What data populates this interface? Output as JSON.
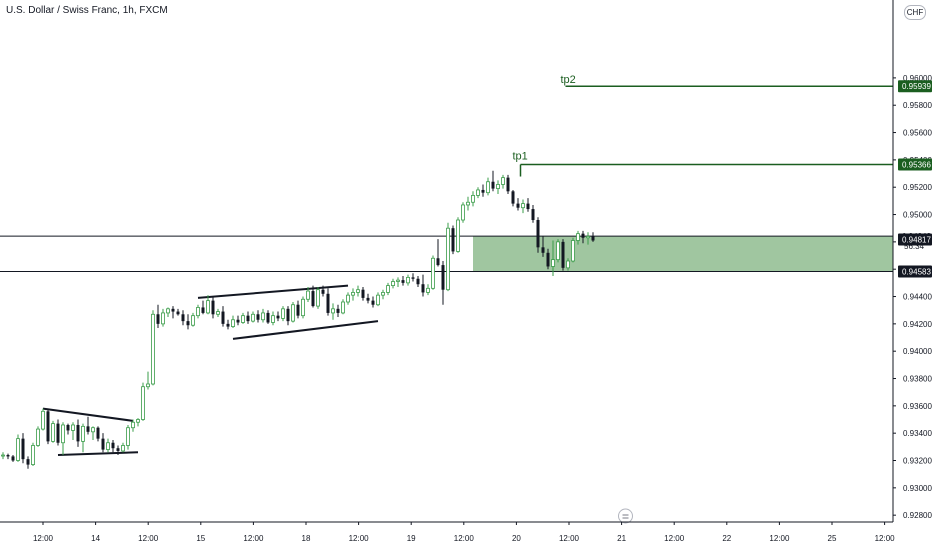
{
  "header": {
    "title": "U.S. Dollar / Swiss Franc, 1h, FXCM",
    "currency_badge": "CHF"
  },
  "colors": {
    "up": "#3a9c49",
    "down": "#131722",
    "zone_fill": "#8fbc8f",
    "tp_line": "#1b5e20",
    "tag_green": "#1b5e20",
    "tag_dark": "#131722",
    "axis_border": "#131722"
  },
  "chart_data": {
    "type": "candlestick",
    "symbol": "USDCHF",
    "timeframe": "1h",
    "y_axis": {
      "ylim": [
        0.9275,
        0.9657
      ],
      "ticks": [
        "0.96000",
        "0.95800",
        "0.95600",
        "0.95400",
        "0.95200",
        "0.95000",
        "0.94800",
        "0.94600",
        "0.94400",
        "0.94200",
        "0.94000",
        "0.93800",
        "0.93600",
        "0.93400",
        "0.93200",
        "0.93000",
        "0.92800"
      ]
    },
    "x_axis": {
      "ticks": [
        "12:00",
        "14",
        "12:00",
        "15",
        "12:00",
        "18",
        "12:00",
        "19",
        "12:00",
        "20",
        "12:00",
        "21",
        "12:00",
        "22",
        "12:00",
        "25",
        "12:00"
      ]
    },
    "candles": [
      [
        0.9324,
        0.9326,
        0.9321,
        0.9324
      ],
      [
        0.9324,
        0.9325,
        0.9321,
        0.9323
      ],
      [
        0.9323,
        0.9324,
        0.9319,
        0.932
      ],
      [
        0.932,
        0.9339,
        0.9319,
        0.9336
      ],
      [
        0.9336,
        0.934,
        0.9318,
        0.9321
      ],
      [
        0.9321,
        0.9323,
        0.9314,
        0.9317
      ],
      [
        0.9317,
        0.9333,
        0.9316,
        0.9331
      ],
      [
        0.9331,
        0.9345,
        0.933,
        0.9343
      ],
      [
        0.9343,
        0.9358,
        0.9342,
        0.9356
      ],
      [
        0.9356,
        0.9357,
        0.9332,
        0.9334
      ],
      [
        0.9334,
        0.9349,
        0.9333,
        0.9347
      ],
      [
        0.9347,
        0.935,
        0.9331,
        0.9333
      ],
      [
        0.9333,
        0.9348,
        0.9324,
        0.9346
      ],
      [
        0.9346,
        0.9347,
        0.9339,
        0.9342
      ],
      [
        0.9342,
        0.9348,
        0.9335,
        0.9346
      ],
      [
        0.9346,
        0.935,
        0.933,
        0.9334
      ],
      [
        0.9334,
        0.9347,
        0.9326,
        0.9345
      ],
      [
        0.9345,
        0.9352,
        0.9339,
        0.9341
      ],
      [
        0.9341,
        0.9345,
        0.9335,
        0.9344
      ],
      [
        0.9344,
        0.9345,
        0.9334,
        0.9336
      ],
      [
        0.9336,
        0.934,
        0.9326,
        0.9328
      ],
      [
        0.9328,
        0.9336,
        0.9326,
        0.9333
      ],
      [
        0.9333,
        0.9335,
        0.9326,
        0.9329
      ],
      [
        0.9329,
        0.9331,
        0.9324,
        0.9327
      ],
      [
        0.9327,
        0.9333,
        0.9326,
        0.9331
      ],
      [
        0.9331,
        0.9346,
        0.9328,
        0.9344
      ],
      [
        0.9344,
        0.935,
        0.9341,
        0.9348
      ],
      [
        0.9348,
        0.9351,
        0.9345,
        0.935
      ],
      [
        0.935,
        0.9377,
        0.9349,
        0.9374
      ],
      [
        0.9374,
        0.9385,
        0.9372,
        0.9376
      ],
      [
        0.9376,
        0.943,
        0.9375,
        0.9427
      ],
      [
        0.9427,
        0.9434,
        0.9417,
        0.942
      ],
      [
        0.942,
        0.9431,
        0.9418,
        0.9428
      ],
      [
        0.9428,
        0.9432,
        0.9425,
        0.9431
      ],
      [
        0.9431,
        0.9433,
        0.9424,
        0.9429
      ],
      [
        0.9429,
        0.9431,
        0.9426,
        0.9427
      ],
      [
        0.9427,
        0.943,
        0.9419,
        0.9422
      ],
      [
        0.9422,
        0.9427,
        0.9416,
        0.9419
      ],
      [
        0.9419,
        0.9428,
        0.9418,
        0.9426
      ],
      [
        0.9426,
        0.9434,
        0.9424,
        0.9432
      ],
      [
        0.9432,
        0.9437,
        0.9427,
        0.9428
      ],
      [
        0.9428,
        0.9441,
        0.9427,
        0.9437
      ],
      [
        0.9437,
        0.944,
        0.9424,
        0.9427
      ],
      [
        0.9427,
        0.9431,
        0.9425,
        0.9429
      ],
      [
        0.9429,
        0.9433,
        0.9418,
        0.942
      ],
      [
        0.942,
        0.9423,
        0.9416,
        0.9418
      ],
      [
        0.9418,
        0.9426,
        0.9417,
        0.9423
      ],
      [
        0.9423,
        0.9426,
        0.9419,
        0.9421
      ],
      [
        0.9421,
        0.9428,
        0.942,
        0.9426
      ],
      [
        0.9426,
        0.9429,
        0.942,
        0.9422
      ],
      [
        0.9422,
        0.9429,
        0.9421,
        0.9427
      ],
      [
        0.9427,
        0.943,
        0.9421,
        0.9423
      ],
      [
        0.9423,
        0.9431,
        0.9421,
        0.9428
      ],
      [
        0.9428,
        0.943,
        0.942,
        0.9421
      ],
      [
        0.9421,
        0.9429,
        0.9419,
        0.9426
      ],
      [
        0.9426,
        0.9429,
        0.9422,
        0.9424
      ],
      [
        0.9424,
        0.9433,
        0.9422,
        0.9431
      ],
      [
        0.9431,
        0.9433,
        0.9419,
        0.9422
      ],
      [
        0.9422,
        0.9436,
        0.9421,
        0.9434
      ],
      [
        0.9434,
        0.9437,
        0.9424,
        0.9426
      ],
      [
        0.9426,
        0.944,
        0.9424,
        0.9438
      ],
      [
        0.9438,
        0.9447,
        0.9436,
        0.9444
      ],
      [
        0.9444,
        0.9448,
        0.9432,
        0.9433
      ],
      [
        0.9433,
        0.9447,
        0.9431,
        0.9445
      ],
      [
        0.9445,
        0.9448,
        0.944,
        0.9442
      ],
      [
        0.9442,
        0.9446,
        0.9426,
        0.9428
      ],
      [
        0.9428,
        0.9435,
        0.9423,
        0.9431
      ],
      [
        0.9431,
        0.9434,
        0.9425,
        0.9428
      ],
      [
        0.9428,
        0.9438,
        0.9427,
        0.9436
      ],
      [
        0.9436,
        0.9443,
        0.9434,
        0.9441
      ],
      [
        0.9441,
        0.9446,
        0.9437,
        0.9443
      ],
      [
        0.9443,
        0.9448,
        0.944,
        0.9445
      ],
      [
        0.9445,
        0.9447,
        0.9437,
        0.9439
      ],
      [
        0.9439,
        0.9442,
        0.9435,
        0.9437
      ],
      [
        0.9437,
        0.944,
        0.9432,
        0.9434
      ],
      [
        0.9434,
        0.9443,
        0.9433,
        0.9441
      ],
      [
        0.9441,
        0.9445,
        0.9438,
        0.9443
      ],
      [
        0.9443,
        0.945,
        0.9441,
        0.9448
      ],
      [
        0.9448,
        0.9453,
        0.9446,
        0.9451
      ],
      [
        0.9451,
        0.9454,
        0.9447,
        0.9452
      ],
      [
        0.9452,
        0.9455,
        0.9448,
        0.945
      ],
      [
        0.945,
        0.9456,
        0.9448,
        0.9454
      ],
      [
        0.9454,
        0.9457,
        0.9451,
        0.9453
      ],
      [
        0.9453,
        0.9455,
        0.9447,
        0.9449
      ],
      [
        0.9449,
        0.9456,
        0.944,
        0.9443
      ],
      [
        0.9443,
        0.9449,
        0.9441,
        0.9446
      ],
      [
        0.9446,
        0.947,
        0.9445,
        0.9468
      ],
      [
        0.9468,
        0.9482,
        0.9462,
        0.9463
      ],
      [
        0.9463,
        0.9466,
        0.9434,
        0.9445
      ],
      [
        0.9445,
        0.9494,
        0.9444,
        0.949
      ],
      [
        0.949,
        0.9492,
        0.9471,
        0.9473
      ],
      [
        0.9473,
        0.9498,
        0.9472,
        0.9496
      ],
      [
        0.9496,
        0.9509,
        0.9494,
        0.9507
      ],
      [
        0.9507,
        0.9513,
        0.9503,
        0.9509
      ],
      [
        0.9509,
        0.9517,
        0.9506,
        0.9514
      ],
      [
        0.9514,
        0.952,
        0.9512,
        0.9518
      ],
      [
        0.9518,
        0.9522,
        0.9513,
        0.9516
      ],
      [
        0.9516,
        0.9527,
        0.9514,
        0.9524
      ],
      [
        0.9524,
        0.9532,
        0.9517,
        0.9519
      ],
      [
        0.9519,
        0.9525,
        0.9515,
        0.9522
      ],
      [
        0.9522,
        0.9529,
        0.9519,
        0.9527
      ],
      [
        0.9527,
        0.9529,
        0.9515,
        0.9517
      ],
      [
        0.9517,
        0.9518,
        0.9506,
        0.9508
      ],
      [
        0.9508,
        0.9512,
        0.9503,
        0.9505
      ],
      [
        0.9505,
        0.9511,
        0.9501,
        0.9508
      ],
      [
        0.9508,
        0.9512,
        0.9502,
        0.9504
      ],
      [
        0.9504,
        0.9507,
        0.9494,
        0.9496
      ],
      [
        0.9496,
        0.9498,
        0.9472,
        0.9476
      ],
      [
        0.9476,
        0.9484,
        0.9469,
        0.9472
      ],
      [
        0.9472,
        0.9475,
        0.946,
        0.9462
      ],
      [
        0.9462,
        0.9481,
        0.9455,
        0.9467
      ],
      [
        0.9467,
        0.9482,
        0.9465,
        0.948
      ],
      [
        0.948,
        0.9482,
        0.9459,
        0.9461
      ],
      [
        0.9461,
        0.9468,
        0.9459,
        0.9466
      ],
      [
        0.9466,
        0.9483,
        0.9465,
        0.9481
      ],
      [
        0.9481,
        0.9488,
        0.9478,
        0.9486
      ],
      [
        0.9486,
        0.9488,
        0.9479,
        0.9483
      ],
      [
        0.9483,
        0.9487,
        0.9478,
        0.9484
      ],
      [
        0.9484,
        0.9487,
        0.948,
        0.9481
      ]
    ],
    "annotations": {
      "tp1": {
        "label": "tp1",
        "price": 0.95366,
        "tag": "0.95366"
      },
      "tp2": {
        "label": "tp2",
        "price": 0.95939,
        "tag": "0.95939"
      },
      "zone": {
        "top": 0.94842,
        "bottom": 0.94583
      },
      "lines": [
        {
          "price": 0.94842,
          "tag": "0.94842"
        },
        {
          "price": 0.94583,
          "tag": "0.94583"
        }
      ],
      "current_price": {
        "price": 0.94817,
        "tag": "0.94817",
        "countdown": "56:34"
      }
    }
  }
}
